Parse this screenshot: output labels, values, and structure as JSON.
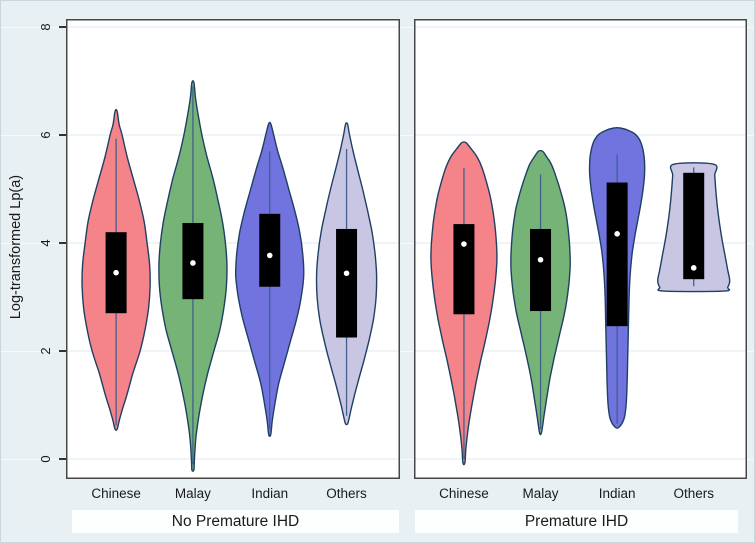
{
  "chart_data": {
    "type": "violin",
    "title": "",
    "ylabel": "Log-transformed Lp(a)",
    "xlabel": "",
    "ylim": [
      -0.37,
      8.15
    ],
    "yticks": [
      0,
      2,
      4,
      6,
      8
    ],
    "grid": true,
    "legend": "none",
    "panels": [
      {
        "label": "No Premature IHD",
        "categories": [
          "Chinese",
          "Malay",
          "Indian",
          "Others"
        ],
        "violins": [
          {
            "category": "Chinese",
            "fill": "#f5838a",
            "min": 0.55,
            "max": 6.45,
            "q1": 2.7,
            "q3": 4.2,
            "median": 3.45,
            "whisker_low": 0.62,
            "whisker_high": 5.93,
            "profile": [
              [
                6.44,
                1
              ],
              [
                6.2,
                3
              ],
              [
                6.0,
                6
              ],
              [
                5.6,
                11
              ],
              [
                5.2,
                17
              ],
              [
                4.8,
                23
              ],
              [
                4.4,
                28
              ],
              [
                4.0,
                31
              ],
              [
                3.6,
                33.5
              ],
              [
                3.2,
                34
              ],
              [
                2.8,
                32.5
              ],
              [
                2.4,
                29
              ],
              [
                2.0,
                24
              ],
              [
                1.6,
                17
              ],
              [
                1.2,
                11
              ],
              [
                0.9,
                6
              ],
              [
                0.7,
                3
              ],
              [
                0.55,
                1
              ]
            ]
          },
          {
            "category": "Malay",
            "fill": "#76b377",
            "min": -0.2,
            "max": 6.97,
            "q1": 2.96,
            "q3": 4.37,
            "median": 3.63,
            "whisker_low": -0.1,
            "whisker_high": 6.9,
            "profile": [
              [
                6.97,
                1
              ],
              [
                6.7,
                2.5
              ],
              [
                6.4,
                5
              ],
              [
                6.0,
                9
              ],
              [
                5.6,
                14
              ],
              [
                5.2,
                20
              ],
              [
                4.8,
                25
              ],
              [
                4.4,
                29.5
              ],
              [
                4.0,
                32.5
              ],
              [
                3.6,
                34
              ],
              [
                3.2,
                33.5
              ],
              [
                2.8,
                31
              ],
              [
                2.4,
                27
              ],
              [
                2.0,
                21
              ],
              [
                1.6,
                15
              ],
              [
                1.2,
                10
              ],
              [
                0.8,
                6
              ],
              [
                0.4,
                3
              ],
              [
                0.0,
                1.5
              ],
              [
                -0.2,
                1
              ]
            ]
          },
          {
            "category": "Indian",
            "fill": "#7173de",
            "min": 0.45,
            "max": 6.21,
            "q1": 3.19,
            "q3": 4.54,
            "median": 3.77,
            "whisker_low": 0.55,
            "whisker_high": 5.7,
            "profile": [
              [
                6.21,
                1
              ],
              [
                6.0,
                4
              ],
              [
                5.7,
                8
              ],
              [
                5.4,
                13
              ],
              [
                5.0,
                19
              ],
              [
                4.6,
                25
              ],
              [
                4.2,
                30
              ],
              [
                3.8,
                33
              ],
              [
                3.4,
                34
              ],
              [
                3.0,
                31.5
              ],
              [
                2.6,
                27
              ],
              [
                2.2,
                21
              ],
              [
                1.8,
                15
              ],
              [
                1.4,
                9
              ],
              [
                1.0,
                5
              ],
              [
                0.7,
                2.5
              ],
              [
                0.45,
                1
              ]
            ]
          },
          {
            "category": "Others",
            "fill": "#c9c6e3",
            "min": 0.65,
            "max": 6.2,
            "q1": 2.25,
            "q3": 4.26,
            "median": 3.44,
            "whisker_low": 0.8,
            "whisker_high": 5.74,
            "profile": [
              [
                6.2,
                1
              ],
              [
                6.0,
                3
              ],
              [
                5.7,
                6.5
              ],
              [
                5.4,
                10.5
              ],
              [
                5.0,
                16
              ],
              [
                4.6,
                21
              ],
              [
                4.2,
                25.5
              ],
              [
                3.8,
                28.5
              ],
              [
                3.4,
                30
              ],
              [
                3.0,
                29.5
              ],
              [
                2.6,
                27
              ],
              [
                2.2,
                22.5
              ],
              [
                1.8,
                17
              ],
              [
                1.4,
                11
              ],
              [
                1.0,
                5.5
              ],
              [
                0.75,
                2.5
              ],
              [
                0.65,
                1
              ]
            ]
          }
        ]
      },
      {
        "label": "Premature IHD",
        "categories": [
          "Chinese",
          "Malay",
          "Indian",
          "Others"
        ],
        "violins": [
          {
            "category": "Chinese",
            "fill": "#f5838a",
            "min": -0.07,
            "max": 5.86,
            "q1": 2.68,
            "q3": 4.35,
            "median": 3.98,
            "whisker_low": 0.0,
            "whisker_high": 5.39,
            "profile": [
              [
                5.86,
                2
              ],
              [
                5.75,
                7
              ],
              [
                5.6,
                13
              ],
              [
                5.4,
                18
              ],
              [
                5.1,
                23
              ],
              [
                4.8,
                27
              ],
              [
                4.4,
                30.5
              ],
              [
                4.0,
                32.5
              ],
              [
                3.7,
                33
              ],
              [
                3.4,
                32
              ],
              [
                3.0,
                29.5
              ],
              [
                2.6,
                26
              ],
              [
                2.2,
                21.5
              ],
              [
                1.8,
                16.5
              ],
              [
                1.4,
                12
              ],
              [
                1.0,
                8
              ],
              [
                0.6,
                4.5
              ],
              [
                0.2,
                2
              ],
              [
                -0.07,
                1
              ]
            ]
          },
          {
            "category": "Malay",
            "fill": "#76b377",
            "min": 0.49,
            "max": 5.7,
            "q1": 2.74,
            "q3": 4.26,
            "median": 3.69,
            "whisker_low": 0.55,
            "whisker_high": 5.27,
            "profile": [
              [
                5.7,
                2
              ],
              [
                5.6,
                6
              ],
              [
                5.45,
                11
              ],
              [
                5.2,
                16
              ],
              [
                4.9,
                21
              ],
              [
                4.6,
                25
              ],
              [
                4.2,
                28
              ],
              [
                3.8,
                29.5
              ],
              [
                3.5,
                29.5
              ],
              [
                3.1,
                27.5
              ],
              [
                2.7,
                24
              ],
              [
                2.3,
                19
              ],
              [
                1.9,
                14
              ],
              [
                1.5,
                9.5
              ],
              [
                1.1,
                6
              ],
              [
                0.8,
                3.5
              ],
              [
                0.49,
                1
              ]
            ]
          },
          {
            "category": "Indian",
            "fill": "#7173de",
            "min": 0.59,
            "max": 6.13,
            "q1": 2.46,
            "q3": 5.12,
            "median": 4.17,
            "whisker_low": 0.65,
            "whisker_high": 5.64,
            "profile": [
              [
                6.13,
                3
              ],
              [
                6.08,
                12
              ],
              [
                6.0,
                19
              ],
              [
                5.85,
                24
              ],
              [
                5.6,
                27
              ],
              [
                5.3,
                27.5
              ],
              [
                5.0,
                26
              ],
              [
                4.7,
                23.5
              ],
              [
                4.4,
                20.5
              ],
              [
                4.1,
                17.5
              ],
              [
                3.8,
                15
              ],
              [
                3.4,
                13
              ],
              [
                3.0,
                12
              ],
              [
                2.6,
                11.5
              ],
              [
                2.2,
                11
              ],
              [
                1.8,
                10.5
              ],
              [
                1.4,
                10
              ],
              [
                1.0,
                9
              ],
              [
                0.75,
                7
              ],
              [
                0.59,
                2
              ]
            ]
          },
          {
            "category": "Others",
            "fill": "#c9c6e3",
            "min": 3.11,
            "max": 5.46,
            "q1": 3.33,
            "q3": 5.3,
            "median": 3.54,
            "whisker_low": 3.2,
            "whisker_high": 5.4,
            "truncated": true,
            "profile": [
              [
                5.46,
                20
              ],
              [
                5.25,
                21
              ],
              [
                5.0,
                22
              ],
              [
                4.7,
                23.5
              ],
              [
                4.4,
                25.5
              ],
              [
                4.1,
                28
              ],
              [
                3.8,
                31
              ],
              [
                3.5,
                34
              ],
              [
                3.3,
                36
              ],
              [
                3.18,
                34
              ],
              [
                3.11,
                30
              ]
            ]
          }
        ]
      }
    ],
    "style": {
      "canvas_bg": "#e8f0f4",
      "panel_bg": "#ffffff",
      "panel_border": "#474747",
      "grid_color": "#dceaf2",
      "grid_stub_color": "#f5fafc",
      "violin_stroke": "#1f3f63",
      "whisker_color": "#3f618c",
      "box_color": "#000000",
      "median_color": "#ffffff",
      "strip_bg": "#fdfefe",
      "text_color": "#1a1a1a"
    }
  }
}
